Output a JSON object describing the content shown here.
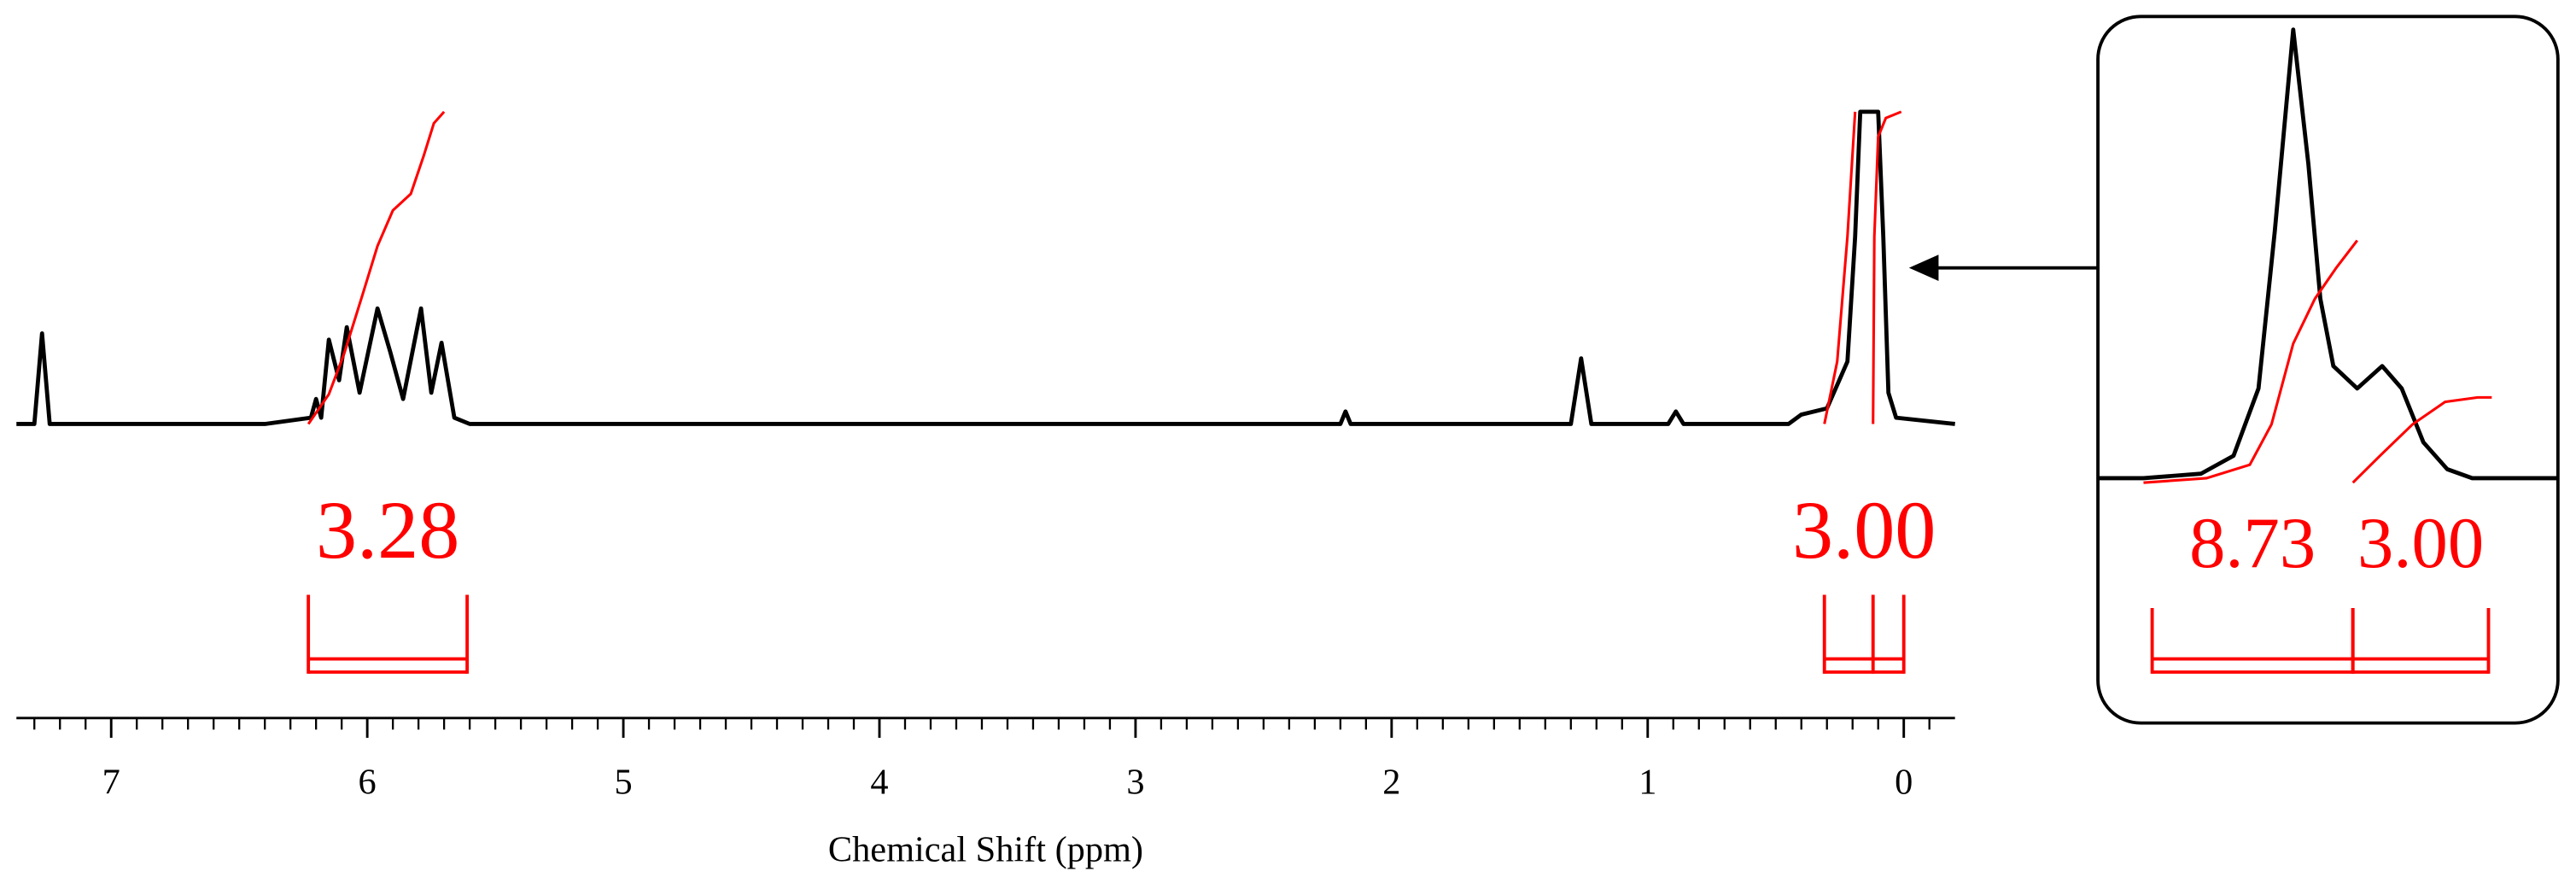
{
  "chart_data": [
    {
      "type": "line",
      "x_label": "Chemical Shift (ppm)",
      "xlim": [
        7.37,
        -0.2
      ],
      "ylim": [
        0,
        100
      ],
      "xticks": [
        7,
        6,
        5,
        4,
        3,
        2,
        1,
        0
      ],
      "xminorticks": [
        7.3,
        7.2,
        7.1,
        6.9,
        6.8,
        6.7,
        6.6,
        6.5,
        6.4,
        6.3,
        6.2,
        6.1,
        5.9,
        5.8,
        5.7,
        5.6,
        5.5,
        5.4,
        5.3,
        5.2,
        5.1,
        4.9,
        4.8,
        4.7,
        4.6,
        4.5,
        4.4,
        4.3,
        4.2,
        4.1,
        3.9,
        3.8,
        3.7,
        3.6,
        3.5,
        3.4,
        3.3,
        3.2,
        3.1,
        2.9,
        2.8,
        2.7,
        2.6,
        2.5,
        2.4,
        2.3,
        2.2,
        2.1,
        1.9,
        1.8,
        1.7,
        1.6,
        1.5,
        1.4,
        1.3,
        1.2,
        1.1,
        0.9,
        0.8,
        0.7,
        0.6,
        0.5,
        0.4,
        0.3,
        0.2,
        0.1,
        -0.1
      ],
      "x": [
        7.37,
        7.3,
        7.27,
        7.24,
        6.4,
        6.22,
        6.2,
        6.18,
        6.15,
        6.11,
        6.08,
        6.03,
        5.96,
        5.91,
        5.86,
        5.79,
        5.75,
        5.71,
        5.66,
        5.6,
        2.2,
        2.18,
        2.16,
        1.3,
        1.26,
        1.22,
        0.92,
        0.89,
        0.86,
        0.45,
        0.4,
        0.3,
        0.22,
        0.19,
        0.17,
        0.1,
        0.08,
        0.06,
        0.03,
        -0.2
      ],
      "series": [
        {
          "color": "#000000",
          "values": [
            0,
            0,
            29,
            0,
            0,
            2,
            8,
            2,
            27,
            14,
            31,
            10,
            37,
            23,
            8,
            37,
            10,
            26,
            2,
            0,
            0,
            4,
            0,
            0,
            21,
            0,
            0,
            4,
            0,
            0,
            3,
            5,
            20,
            60,
            100,
            100,
            60,
            10,
            2,
            0
          ]
        }
      ],
      "integral_color": "#ff0000",
      "integrals": [
        {
          "x": [
            6.23,
            6.15,
            6.09,
            6.02,
            5.96,
            5.9,
            5.83,
            5.78,
            5.74,
            5.7
          ],
          "values": [
            0,
            9.5,
            22.6,
            41,
            57,
            68.4,
            73.7,
            85.8,
            96.3,
            100
          ],
          "bracket": [
            6.23,
            5.61
          ],
          "label": "3.28"
        },
        {
          "x": [
            0.31,
            0.26,
            0.22,
            0.19,
            null,
            0.12,
            0.115,
            0.1,
            0.07,
            0.01
          ],
          "values": [
            0,
            20,
            60,
            100,
            null,
            0,
            60,
            92,
            98,
            100
          ],
          "bracket": [
            0.31,
            0.12,
            0.0
          ],
          "label": "3.00"
        }
      ]
    },
    {
      "type": "line",
      "xlim": [
        0.36,
        -0.064
      ],
      "ylim": [
        0,
        100
      ],
      "x": [
        0.36,
        0.318,
        0.265,
        0.235,
        0.212,
        0.197,
        0.18,
        0.166,
        0.155,
        0.143,
        0.121,
        0.098,
        0.08,
        0.06,
        0.038,
        0.015,
        -0.064
      ],
      "series": [
        {
          "color": "#000000",
          "values": [
            0,
            0,
            1,
            5,
            20,
            55,
            100,
            70,
            40,
            25,
            20,
            25,
            20,
            8,
            2,
            0,
            0
          ]
        }
      ],
      "integral_color": "#ff0000",
      "integrals": [
        {
          "x": [
            0.318,
            0.26,
            0.22,
            0.2,
            0.18,
            0.16,
            0.14,
            0.121
          ],
          "values": [
            -1,
            0,
            3,
            12,
            30,
            40,
            47,
            53
          ],
          "bracket": [
            0.31,
            0.125
          ],
          "label": "8.73"
        },
        {
          "x": [
            0.125,
            0.1,
            0.07,
            0.04,
            0.01,
            -0.003
          ],
          "values": [
            -1,
            5,
            12,
            17,
            18,
            18
          ],
          "bracket": [
            0.125,
            0.0
          ],
          "label": "3.00"
        }
      ]
    }
  ]
}
